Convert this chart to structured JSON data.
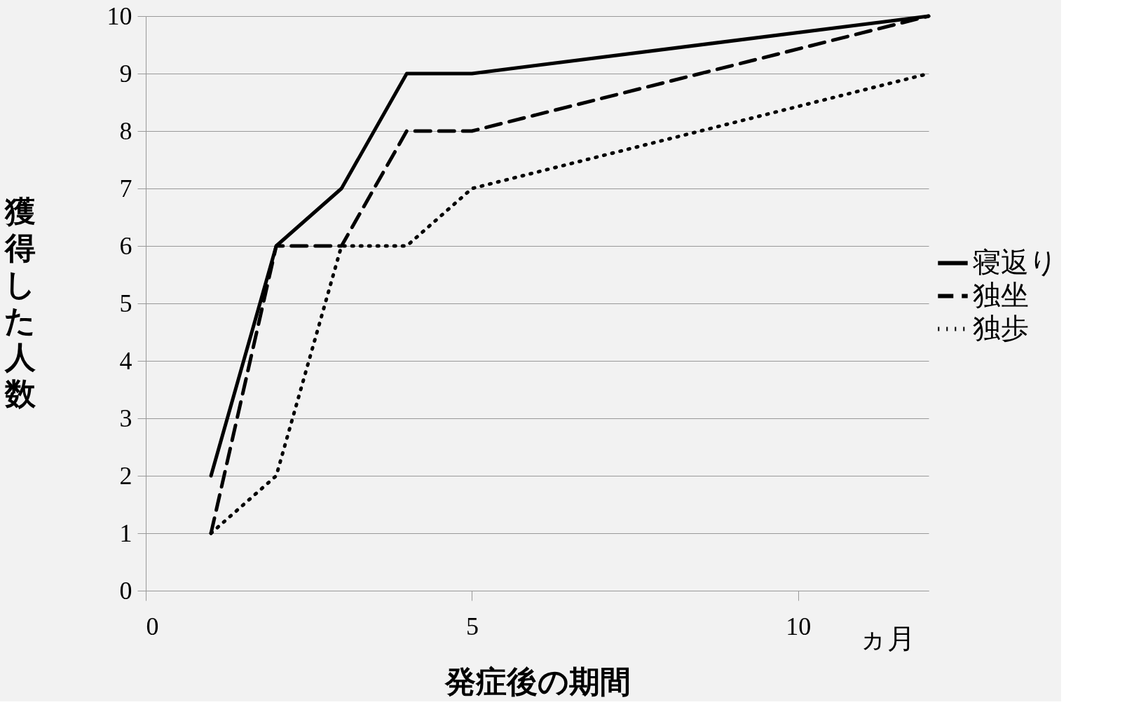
{
  "chart_data": {
    "type": "line",
    "xlabel": "発症後の期間",
    "ylabel": "獲得した人数",
    "x": [
      1,
      2,
      3,
      4,
      5,
      12
    ],
    "series": [
      {
        "name": "寝返り",
        "color": "#000000",
        "line_style": "solid",
        "values": [
          2,
          6,
          7,
          9,
          9,
          10
        ]
      },
      {
        "name": "独坐",
        "color": "#000000",
        "line_style": "dashed",
        "values": [
          1,
          6,
          6,
          8,
          8,
          10
        ]
      },
      {
        "name": "独歩",
        "color": "#000000",
        "line_style": "dotted",
        "values": [
          1,
          2,
          6,
          6,
          7,
          9
        ]
      }
    ],
    "xlim": [
      0,
      12
    ],
    "xticks": [
      0,
      5,
      10
    ],
    "ylim": [
      0,
      10
    ],
    "yticks": [
      0,
      1,
      2,
      3,
      4,
      5,
      6,
      7,
      8,
      9,
      10
    ],
    "grid": "y",
    "legend": "right",
    "marker": "none",
    "annotations": [
      "ヵ月"
    ]
  }
}
